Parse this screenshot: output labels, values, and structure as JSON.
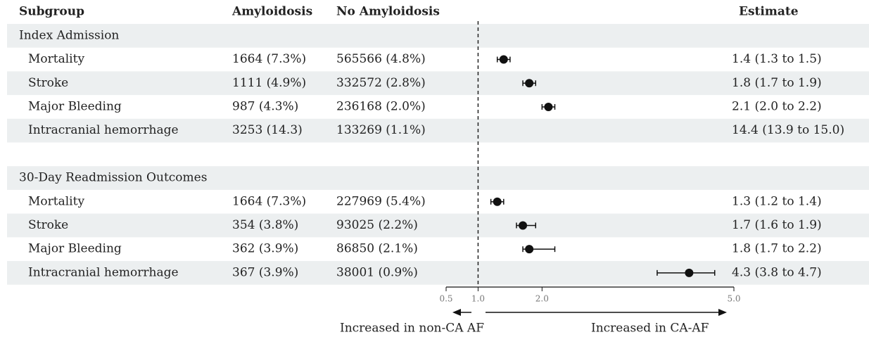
{
  "columns": [
    "Subgroup",
    "Amyloidosis",
    "No Amyloidosis",
    "Estimate"
  ],
  "groups": [
    {
      "title": "Index Admission",
      "rows": [
        {
          "subgroup": "Mortality",
          "amyloidosis": "1664 (7.3%)",
          "no_amyloidosis": "565566 (4.8%)",
          "estimate_label": "1.4 (1.3 to 1.5)",
          "estimate": 1.4,
          "lower": 1.3,
          "upper": 1.5
        },
        {
          "subgroup": "Stroke",
          "amyloidosis": "1111 (4.9%)",
          "no_amyloidosis": "332572 (2.8%)",
          "estimate_label": "1.8 (1.7 to 1.9)",
          "estimate": 1.8,
          "lower": 1.7,
          "upper": 1.9
        },
        {
          "subgroup": "Major Bleeding",
          "amyloidosis": "987 (4.3%)",
          "no_amyloidosis": "236168 (2.0%)",
          "estimate_label": "2.1 (2.0 to 2.2)",
          "estimate": 2.1,
          "lower": 2.0,
          "upper": 2.2
        },
        {
          "subgroup": "Intracranial hemorrhage",
          "amyloidosis": "3253 (14.3)",
          "no_amyloidosis": "133269 (1.1%)",
          "estimate_label": "14.4 (13.9 to 15.0)",
          "estimate": 14.4,
          "lower": 13.9,
          "upper": 15.0
        }
      ]
    },
    {
      "title": "30-Day Readmission Outcomes",
      "rows": [
        {
          "subgroup": "Mortality",
          "amyloidosis": "1664 (7.3%)",
          "no_amyloidosis": "227969 (5.4%)",
          "estimate_label": "1.3 (1.2 to 1.4)",
          "estimate": 1.3,
          "lower": 1.2,
          "upper": 1.4
        },
        {
          "subgroup": "Stroke",
          "amyloidosis": "354 (3.8%)",
          "no_amyloidosis": "93025 (2.2%)",
          "estimate_label": "1.7 (1.6 to 1.9)",
          "estimate": 1.7,
          "lower": 1.6,
          "upper": 1.9
        },
        {
          "subgroup": "Major Bleeding",
          "amyloidosis": "362 (3.9%)",
          "no_amyloidosis": "86850 (2.1%)",
          "estimate_label": "1.8 (1.7 to 2.2)",
          "estimate": 1.8,
          "lower": 1.7,
          "upper": 2.2
        },
        {
          "subgroup": "Intracranial hemorrhage",
          "amyloidosis": "367 (3.9%)",
          "no_amyloidosis": "38001 (0.9%)",
          "estimate_label": "4.3 (3.8 to 4.7)",
          "estimate": 4.3,
          "lower": 3.8,
          "upper": 4.7
        }
      ]
    }
  ],
  "axis": {
    "xlim": [
      0.5,
      5.0
    ],
    "xticks": [
      {
        "value": 0.5,
        "label": "0.5"
      },
      {
        "value": 1.0,
        "label": "1.0"
      },
      {
        "value": 2.0,
        "label": "2.0"
      },
      {
        "value": 5.0,
        "label": "5.0"
      }
    ]
  },
  "arrows": {
    "left": "Increased in non-CA AF",
    "right": "Increased in CA-AF"
  }
}
